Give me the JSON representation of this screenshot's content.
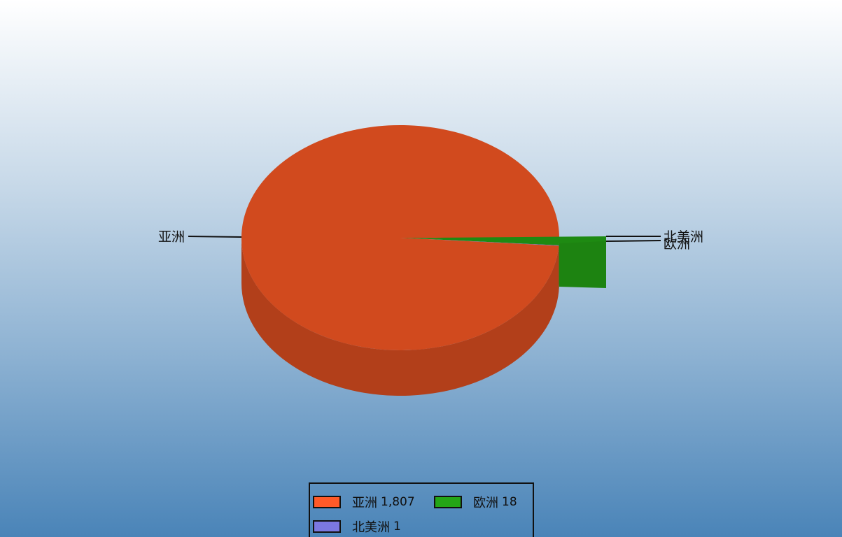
{
  "chart_data": {
    "type": "pie",
    "categories": [
      "亚洲",
      "欧洲",
      "北美洲"
    ],
    "values": [
      1807,
      18,
      1
    ],
    "value_labels": [
      "1,807",
      "18",
      "1"
    ],
    "colors": [
      "#d14a1e",
      "#1e8a12",
      "#7070d8"
    ],
    "legend_colors": [
      "#ff5a28",
      "#24a616",
      "#7b78e0"
    ],
    "legend": "bottom",
    "style": "3d"
  }
}
